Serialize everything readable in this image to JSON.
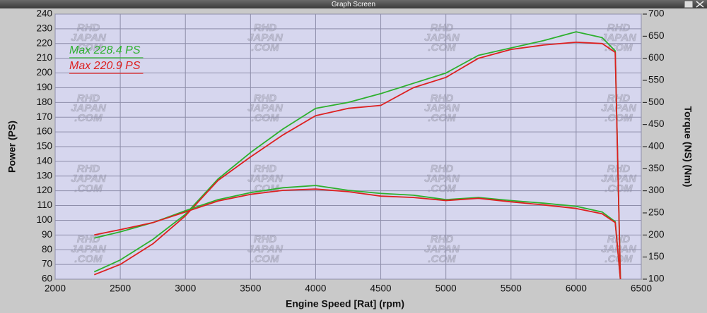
{
  "window_title": "Graph Screen",
  "chart_data": {
    "type": "line",
    "xlabel": "Engine Speed [Rat] (rpm)",
    "ylabel": "Power (PS)",
    "y2label": "Torque (NS) (Nm)",
    "annotations": [
      "Max 228.4 PS",
      "Max 220.9 PS"
    ],
    "watermark": [
      "RHD",
      "JAPAN",
      ".COM"
    ],
    "x": [
      2300,
      2500,
      2750,
      3000,
      3250,
      3500,
      3750,
      4000,
      4250,
      4500,
      4750,
      5000,
      5250,
      5500,
      5750,
      6000,
      6200,
      6300,
      6340
    ],
    "series": [
      {
        "name": "Power green",
        "color": "#2db02d",
        "values": [
          65,
          73,
          87,
          104,
          128,
          146,
          162,
          176,
          180,
          186,
          193,
          200,
          212,
          217,
          222,
          228,
          224,
          215,
          60
        ]
      },
      {
        "name": "Power red",
        "color": "#dd2020",
        "values": [
          63,
          70,
          84,
          103,
          127,
          143,
          158,
          171,
          176,
          178,
          190,
          197,
          210,
          216,
          219,
          220.9,
          220,
          214,
          60
        ]
      },
      {
        "name": "Torque green",
        "color": "#2db02d",
        "axis": "y2",
        "values": [
          193,
          207,
          228,
          255,
          280,
          296,
          307,
          312,
          301,
          294,
          290,
          280,
          285,
          278,
          272,
          265,
          252,
          230,
          100
        ]
      },
      {
        "name": "Torque red",
        "color": "#dd2020",
        "axis": "y2",
        "values": [
          200,
          212,
          228,
          252,
          277,
          292,
          301,
          304,
          298,
          288,
          285,
          278,
          283,
          275,
          268,
          260,
          248,
          228,
          100
        ]
      }
    ],
    "xlim": [
      2000,
      6500
    ],
    "xticks": [
      2000,
      2500,
      3000,
      3500,
      4000,
      4500,
      5000,
      5500,
      6000,
      6500
    ],
    "ylim": [
      60,
      240
    ],
    "yticks": [
      60,
      70,
      80,
      90,
      100,
      110,
      120,
      130,
      140,
      150,
      160,
      170,
      180,
      190,
      200,
      210,
      220,
      230,
      240
    ],
    "y2lim": [
      100,
      700
    ],
    "y2ticks": [
      100,
      150,
      200,
      250,
      300,
      350,
      400,
      450,
      500,
      550,
      600,
      650,
      700
    ],
    "grid": true
  }
}
